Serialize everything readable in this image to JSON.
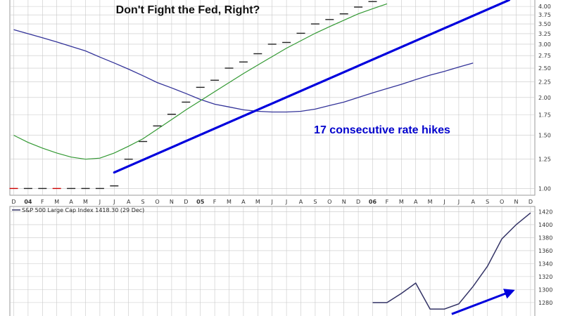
{
  "chart_data": [
    {
      "type": "line",
      "title": "Don't Fight the Fed, Right?",
      "annotation": "17 consecutive rate hikes",
      "y_scale": "log",
      "ylim": [
        0.95,
        4.2
      ],
      "y_ticks": [
        "1.00",
        "1.25",
        "1.50",
        "1.75",
        "2.00",
        "2.25",
        "2.50",
        "2.75",
        "3.00",
        "3.25",
        "3.50",
        "3.75",
        "4.00"
      ],
      "x_month_labels": [
        "D",
        "04",
        "F",
        "M",
        "A",
        "M",
        "J",
        "J",
        "A",
        "S",
        "O",
        "N",
        "D",
        "05",
        "F",
        "M",
        "A",
        "M",
        "J",
        "J",
        "A",
        "S",
        "O",
        "N",
        "D",
        "06",
        "F",
        "M",
        "A",
        "M",
        "J",
        "J",
        "A",
        "S",
        "O",
        "N",
        "D"
      ],
      "year_labels": [
        "04",
        "05",
        "06"
      ],
      "grid": true,
      "series": [
        {
          "style": "step",
          "values": [
            1.0,
            1.0,
            1.0,
            1.0,
            1.0,
            1.0,
            1.0,
            1.02,
            1.25,
            1.43,
            1.61,
            1.76,
            1.93,
            2.16,
            2.28,
            2.5,
            2.62,
            2.79,
            3.0,
            3.04,
            3.26,
            3.5,
            3.62,
            3.78,
            3.98,
            4.15
          ]
        },
        {
          "style": "line",
          "values": [
            3.35,
            3.25,
            3.15,
            3.05,
            2.95,
            2.85,
            2.72,
            2.6,
            2.48,
            2.36,
            2.24,
            2.15,
            2.06,
            1.97,
            1.9,
            1.86,
            1.82,
            1.8,
            1.79,
            1.79,
            1.8,
            1.83,
            1.88,
            1.93,
            2.0,
            2.07,
            2.14,
            2.21,
            2.29,
            2.37,
            2.44,
            2.52,
            2.6
          ]
        },
        {
          "style": "line",
          "values": [
            1.5,
            1.42,
            1.36,
            1.31,
            1.27,
            1.25,
            1.26,
            1.31,
            1.38,
            1.46,
            1.57,
            1.69,
            1.82,
            1.95,
            2.09,
            2.24,
            2.4,
            2.56,
            2.73,
            2.91,
            3.08,
            3.26,
            3.43,
            3.6,
            3.78,
            3.93,
            4.08
          ]
        }
      ],
      "trend_arrow": {
        "from": [
          "Jul 2004",
          1.13
        ],
        "to": [
          "Nov 2006",
          4.2
        ]
      }
    },
    {
      "type": "line",
      "legend_label": "S&P 500 Large Cap Index 1418.30 (29 Dec)",
      "ylim": [
        1255,
        1428
      ],
      "y_ticks": [
        "1420",
        "1400",
        "1380",
        "1360",
        "1340",
        "1320",
        "1300",
        "1280"
      ],
      "grid": true,
      "series": [
        {
          "values": [
            1280,
            1280,
            1294,
            1310,
            1270,
            1270,
            1278,
            1305,
            1336,
            1378,
            1400,
            1418
          ]
        }
      ],
      "trend_arrow": {
        "from": [
          "Jul 2006",
          1284
        ],
        "to": [
          "Nov 2006",
          1302
        ]
      }
    }
  ],
  "colors": {
    "step": "#222222",
    "step_red": "#cc0000",
    "sma_blue": "#333399",
    "sma_green": "#339933",
    "trend_arrow": "#0000dd",
    "annotation": "#0000cc",
    "sp500": "#333366",
    "grid": "#c8c8c8",
    "frame": "#999999"
  }
}
